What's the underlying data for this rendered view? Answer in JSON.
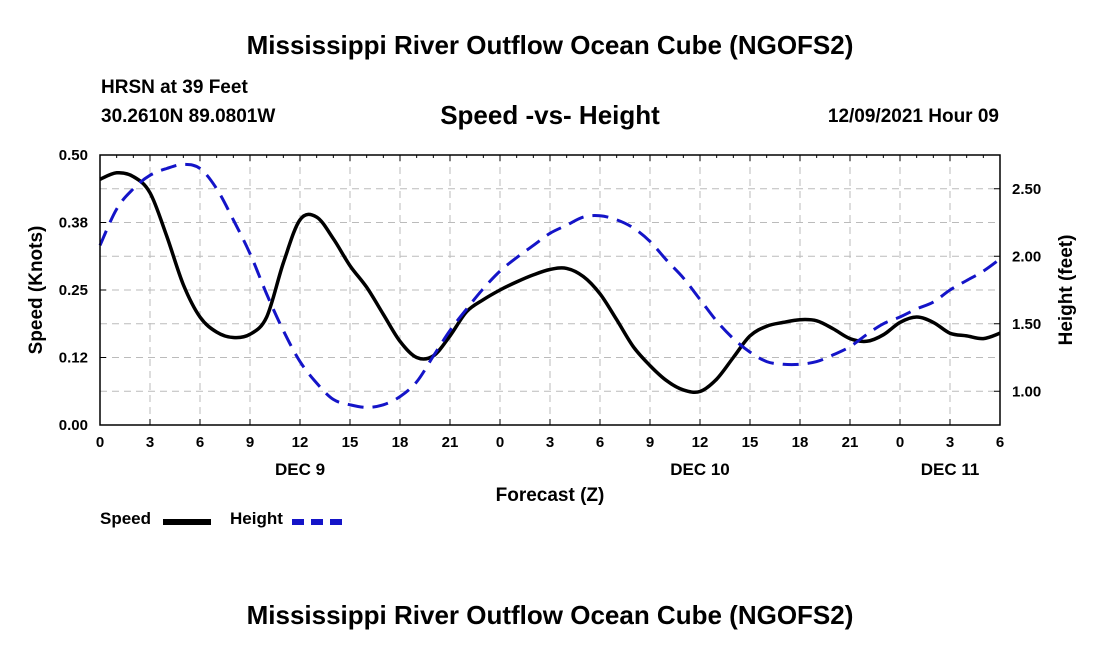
{
  "header": {
    "title": "Mississippi River Outflow Ocean Cube (NGOFS2)",
    "station": "HRSN at 39 Feet",
    "coords": "30.2610N  89.0801W",
    "subtitle": "Speed -vs- Height",
    "datetime": "12/09/2021 Hour 09"
  },
  "footer": {
    "title": "Mississippi River Outflow Ocean Cube (NGOFS2)"
  },
  "legend": {
    "speed_label": "Speed",
    "height_label": "Height"
  },
  "colors": {
    "speed": "#000000",
    "height": "#1414c8",
    "grid": "#bbbbbb"
  },
  "chart_data": {
    "type": "line",
    "title": "Speed -vs- Height",
    "xlabel": "Forecast (Z)",
    "ylabel": "Speed (Knots)",
    "y2label": "Height (feet)",
    "xlim": [
      0,
      54
    ],
    "ylim": [
      0,
      0.5
    ],
    "y2lim": [
      0.75,
      2.75
    ],
    "x_ticks": [
      0,
      3,
      6,
      9,
      12,
      15,
      18,
      21,
      24,
      27,
      30,
      33,
      36,
      39,
      42,
      45,
      48,
      51,
      54
    ],
    "x_tick_labels": [
      "0",
      "3",
      "6",
      "9",
      "12",
      "15",
      "18",
      "21",
      "0",
      "3",
      "6",
      "9",
      "12",
      "15",
      "18",
      "21",
      "0",
      "3",
      "6"
    ],
    "date_labels": [
      {
        "x": 12,
        "label": "DEC 9"
      },
      {
        "x": 36,
        "label": "DEC 10"
      },
      {
        "x": 51,
        "label": "DEC 11"
      }
    ],
    "y_ticks": [
      0,
      0.125,
      0.25,
      0.375,
      0.5
    ],
    "y_tick_labels": [
      "0.00",
      "0.12",
      "0.25",
      "0.38",
      "0.50"
    ],
    "y2_ticks": [
      1.0,
      1.5,
      2.0,
      2.5
    ],
    "y2_tick_labels": [
      "1.00",
      "1.50",
      "2.00",
      "2.50"
    ],
    "grid": true,
    "legend_position": "bottom-left",
    "series": [
      {
        "name": "Speed",
        "axis": "left",
        "x": [
          0,
          1,
          2,
          3,
          4,
          5,
          6,
          7,
          8,
          9,
          10,
          11,
          12,
          13,
          14,
          15,
          16,
          17,
          18,
          19,
          20,
          21,
          22,
          23,
          24,
          25,
          26,
          27,
          28,
          29,
          30,
          31,
          32,
          33,
          34,
          35,
          36,
          37,
          38,
          39,
          40,
          41,
          42,
          43,
          44,
          45,
          46,
          47,
          48,
          49,
          50,
          51,
          52,
          53,
          54
        ],
        "values": [
          0.455,
          0.467,
          0.46,
          0.43,
          0.35,
          0.26,
          0.2,
          0.172,
          0.162,
          0.168,
          0.2,
          0.3,
          0.38,
          0.385,
          0.345,
          0.295,
          0.255,
          0.205,
          0.155,
          0.125,
          0.128,
          0.165,
          0.21,
          0.232,
          0.25,
          0.265,
          0.278,
          0.288,
          0.29,
          0.275,
          0.243,
          0.195,
          0.145,
          0.11,
          0.082,
          0.065,
          0.062,
          0.085,
          0.125,
          0.165,
          0.183,
          0.19,
          0.195,
          0.193,
          0.178,
          0.16,
          0.155,
          0.167,
          0.19,
          0.2,
          0.19,
          0.17,
          0.165,
          0.16,
          0.17
        ]
      },
      {
        "name": "Height",
        "axis": "right",
        "x": [
          0,
          1,
          2,
          3,
          4,
          5,
          6,
          7,
          8,
          9,
          10,
          11,
          12,
          13,
          14,
          15,
          16,
          17,
          18,
          19,
          20,
          21,
          22,
          23,
          24,
          25,
          26,
          27,
          28,
          29,
          30,
          31,
          32,
          33,
          34,
          35,
          36,
          37,
          38,
          39,
          40,
          41,
          42,
          43,
          44,
          45,
          46,
          47,
          48,
          49,
          50,
          51,
          52,
          53,
          54
        ],
        "values": [
          2.08,
          2.35,
          2.5,
          2.6,
          2.65,
          2.68,
          2.65,
          2.5,
          2.27,
          2.02,
          1.72,
          1.45,
          1.22,
          1.06,
          0.94,
          0.9,
          0.88,
          0.9,
          0.96,
          1.07,
          1.26,
          1.45,
          1.61,
          1.76,
          1.89,
          1.99,
          2.08,
          2.17,
          2.23,
          2.29,
          2.3,
          2.27,
          2.21,
          2.11,
          1.97,
          1.84,
          1.68,
          1.52,
          1.39,
          1.29,
          1.22,
          1.2,
          1.2,
          1.22,
          1.27,
          1.33,
          1.42,
          1.5,
          1.55,
          1.61,
          1.66,
          1.75,
          1.82,
          1.89,
          1.98
        ]
      }
    ]
  }
}
